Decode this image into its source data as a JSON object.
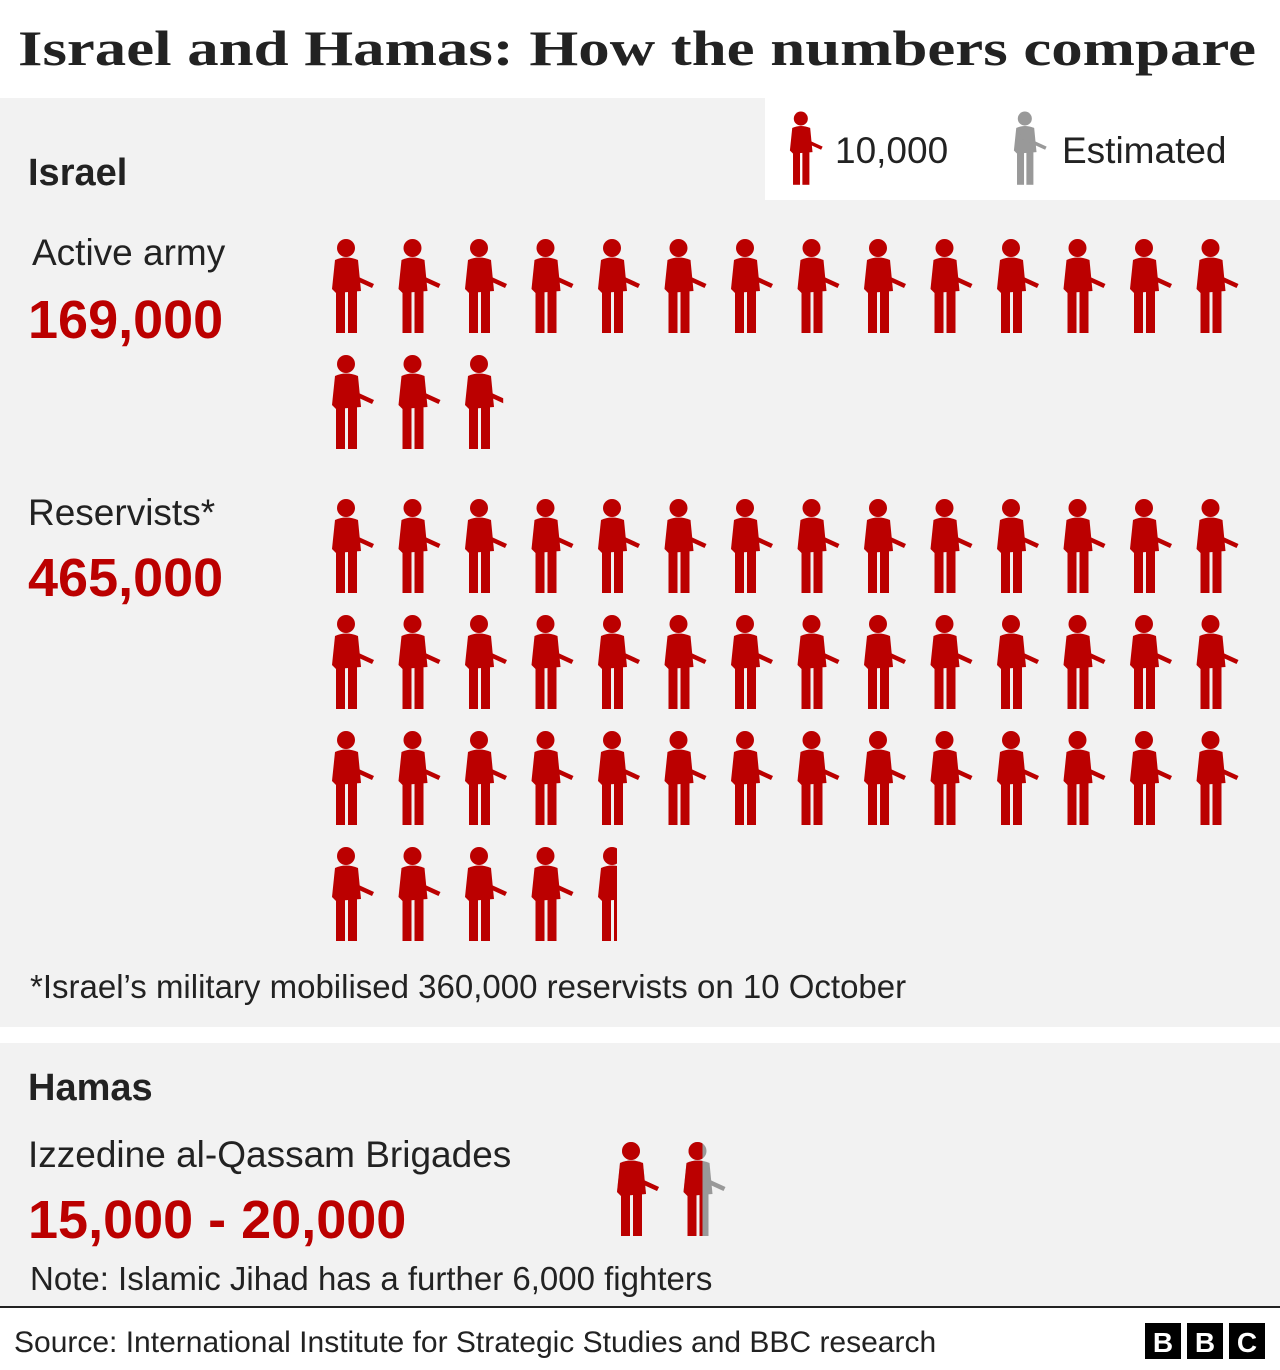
{
  "chart_data": {
    "type": "pictogram",
    "title": "Israel and Hamas: How the numbers compare",
    "unit": {
      "value": 10000,
      "label": "10,000"
    },
    "estimated_label": "Estimated",
    "color": "#bb0000",
    "estimated_color": "#999999",
    "groups": [
      {
        "name": "Israel",
        "series": [
          {
            "name": "Active army",
            "values": [
              169000
            ],
            "value_label": "169,000"
          },
          {
            "name": "Reservists*",
            "values": [
              465000
            ],
            "value_label": "465,000"
          }
        ],
        "note": "*Israel’s military mobilised 360,000 reservists on 10 October"
      },
      {
        "name": "Hamas",
        "series": [
          {
            "name": "Izzedine al-Qassam Brigades",
            "values": [
              15000,
              20000
            ],
            "value_label": "15,000 - 20,000"
          }
        ],
        "note": "Note: Islamic Jihad has a further 6,000 fighters"
      }
    ],
    "source": "Source: International Institute for Strategic Studies and BBC research",
    "logo": [
      "B",
      "B",
      "C"
    ]
  }
}
